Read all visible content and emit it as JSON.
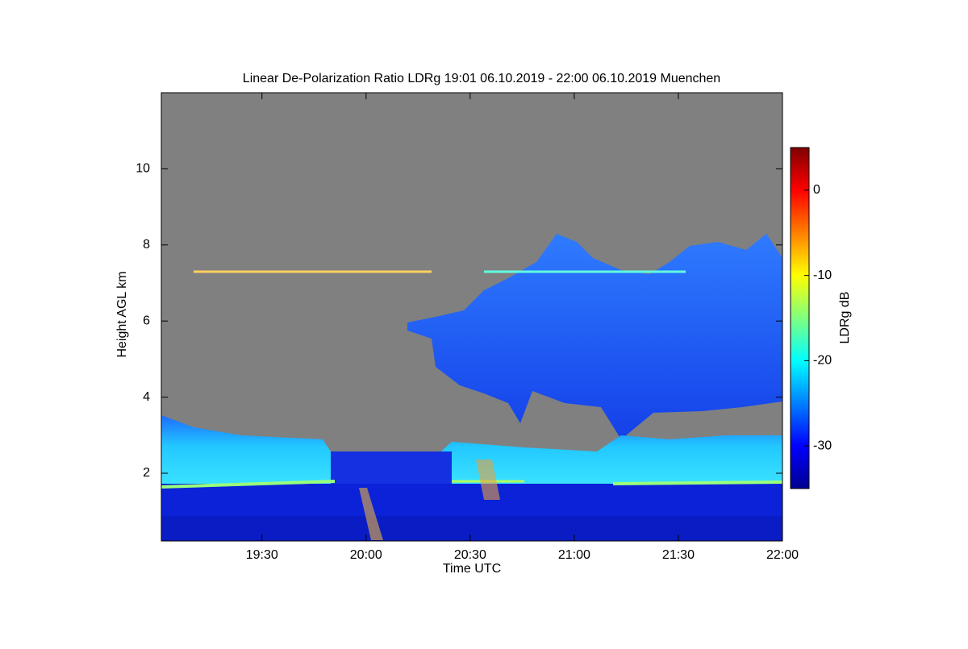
{
  "chart_data": {
    "type": "heatmap",
    "title": "Linear De-Polarization Ratio LDRg   19:01 06.10.2019 - 22:00 06.10.2019 Muenchen",
    "xlabel": "Time UTC",
    "ylabel": "Height AGL km",
    "xlim": [
      1141,
      1320
    ],
    "xticks": [
      {
        "value": 1170,
        "label": "19:30"
      },
      {
        "value": 1200,
        "label": "20:00"
      },
      {
        "value": 1230,
        "label": "20:30"
      },
      {
        "value": 1260,
        "label": "21:00"
      },
      {
        "value": 1290,
        "label": "21:30"
      },
      {
        "value": 1320,
        "label": "22:00"
      }
    ],
    "ylim": [
      0.22,
      12
    ],
    "yticks": [
      2,
      4,
      6,
      8,
      10
    ],
    "colorbar": {
      "label": "LDRg dB",
      "lim": [
        -35,
        5
      ],
      "ticks": [
        0,
        -10,
        -20,
        -30
      ],
      "colormap": "jet"
    }
  }
}
